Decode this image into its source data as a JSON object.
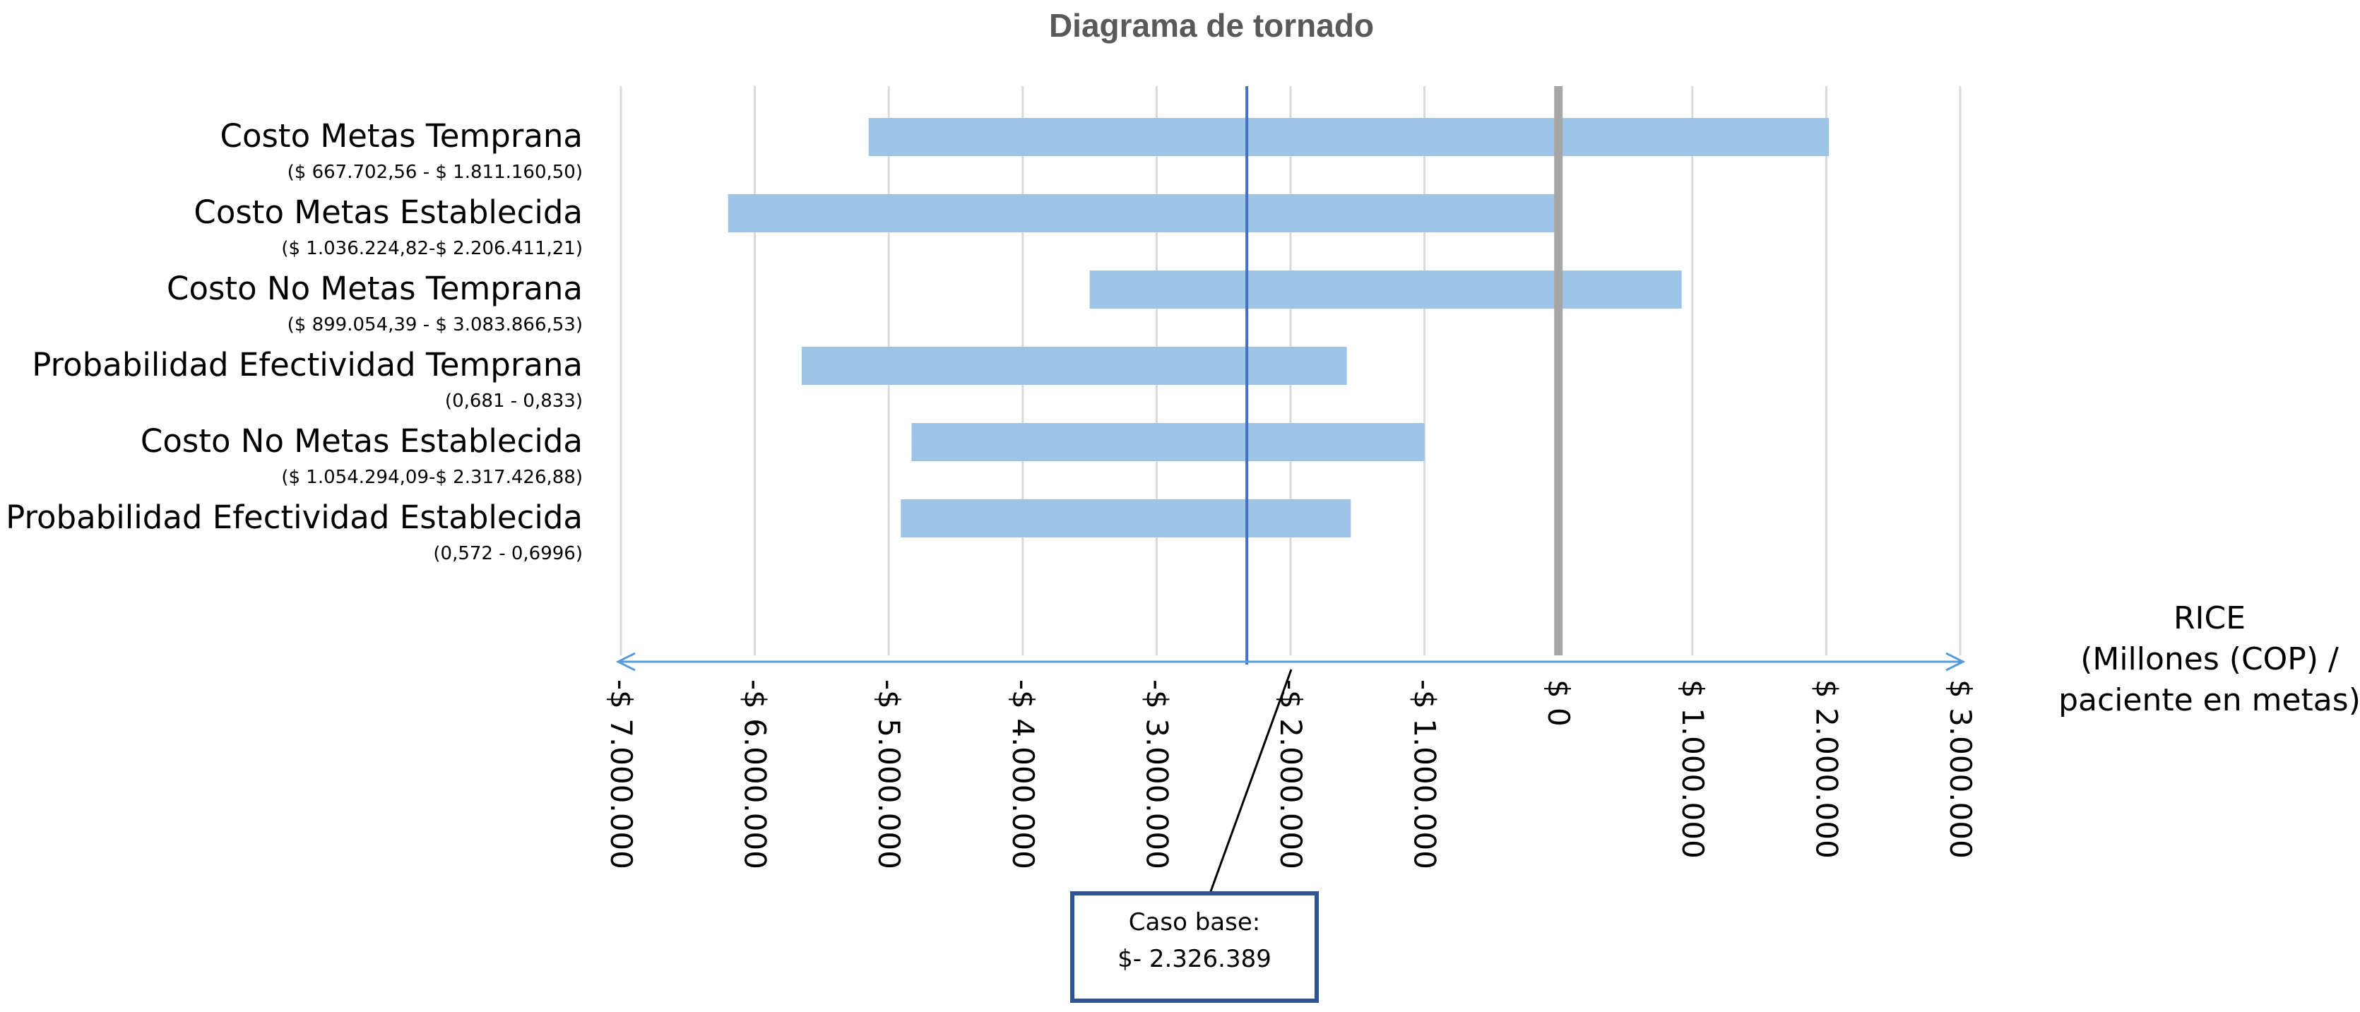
{
  "chart_data": {
    "type": "bar",
    "orientation": "horizontal",
    "title": "Diagrama de tornado",
    "xlabel_lines": [
      "RICE",
      "(Millones (COP) /",
      "paciente en metas)"
    ],
    "xlim": [
      -7000000,
      3000000
    ],
    "tick_values": [
      -7000000,
      -6000000,
      -5000000,
      -4000000,
      -3000000,
      -2000000,
      -1000000,
      0,
      1000000,
      2000000,
      3000000
    ],
    "tick_labels": [
      "-$ 7.000.000",
      "-$ 6.000.000",
      "-$ 5.000.000",
      "-$ 4.000.000",
      "-$ 3.000.000",
      "-$ 2.000.000",
      "-$ 1.000.000",
      "$ 0",
      "$ 1.000.000",
      "$ 2.000.000",
      "$ 3.000.000"
    ],
    "grid": true,
    "bar_color": "#9dc3e6",
    "base_line_color": "#4472c4",
    "zero_line_color": "#a6a6a6",
    "categories": [
      {
        "label": "Costo Metas Temprana",
        "range_label": "($ 667.702,56 - $ 1.811.160,50)",
        "low": -5150000,
        "high": 2020000
      },
      {
        "label": "Costo Metas Establecida",
        "range_label": "($ 1.036.224,82-$ 2.206.411,21)",
        "low": -6200000,
        "high": 0
      },
      {
        "label": "Costo No Metas Temprana",
        "range_label": "($ 899.054,39 - $ 3.083.866,53)",
        "low": -3500000,
        "high": 920000
      },
      {
        "label": "Probabilidad Efectividad Temprana",
        "range_label": "(0,681 - 0,833)",
        "low": -5650000,
        "high": -1580000
      },
      {
        "label": "Costo No Metas Establecida",
        "range_label": "($ 1.054.294,09-$ 2.317.426,88)",
        "low": -4830000,
        "high": -1000000
      },
      {
        "label": "Probabilidad Efectividad Establecida",
        "range_label": "(0,572 - 0,6996)",
        "low": -4910000,
        "high": -1550000
      }
    ],
    "base_case": {
      "value": -2326389,
      "title": "Caso base:",
      "label": "$- 2.326.389"
    }
  }
}
